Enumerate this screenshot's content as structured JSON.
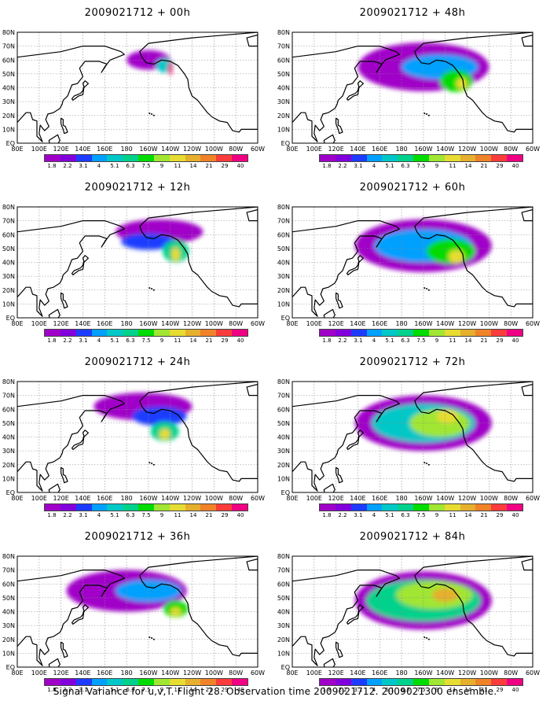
{
  "caption": "Signal Variance for u,v,T. Flight 28. Observation time 2009021712. 2009021300 ensemble.",
  "colorbar": {
    "labels": [
      "1.8",
      "2.2",
      "3.1",
      "4",
      "5.1",
      "6.3",
      "7.5",
      "9",
      "11",
      "14",
      "21",
      "29",
      "40"
    ],
    "colors": [
      "#a000c8",
      "#8200dc",
      "#1e3cff",
      "#00a0ff",
      "#00c8c8",
      "#00d28c",
      "#00dc00",
      "#a0e632",
      "#e6dc32",
      "#e6af2d",
      "#f08228",
      "#fa3c3c",
      "#f00082"
    ]
  },
  "axes": {
    "x_ticks": [
      "80E",
      "100E",
      "120E",
      "140E",
      "160E",
      "180",
      "160W",
      "140W",
      "120W",
      "100W",
      "80W",
      "60W"
    ],
    "y_ticks": [
      "80N",
      "70N",
      "60N",
      "50N",
      "40N",
      "30N",
      "20N",
      "10N",
      "EQ"
    ]
  },
  "chart_data": [
    {
      "type": "heatmap",
      "title": "2009021712 + 00h",
      "lead_hours": 0,
      "x_range": [
        "80E",
        "60W"
      ],
      "y_range": [
        "EQ",
        "80N"
      ],
      "signal_regions": [
        {
          "center": [
            200,
            60
          ],
          "extent": [
            40,
            14
          ],
          "level": "1.8"
        },
        {
          "center": [
            215,
            56
          ],
          "extent": [
            16,
            10
          ],
          "level": "5.1"
        },
        {
          "center": [
            220,
            54
          ],
          "extent": [
            4,
            10
          ],
          "level": "40"
        }
      ]
    },
    {
      "type": "heatmap",
      "title": "2009021712 + 12h",
      "lead_hours": 12,
      "x_range": [
        "80E",
        "60W"
      ],
      "y_range": [
        "EQ",
        "80N"
      ],
      "signal_regions": [
        {
          "center": [
            210,
            62
          ],
          "extent": [
            80,
            18
          ],
          "level": "1.8"
        },
        {
          "center": [
            200,
            55
          ],
          "extent": [
            50,
            12
          ],
          "level": "3.1"
        },
        {
          "center": [
            225,
            48
          ],
          "extent": [
            24,
            16
          ],
          "level": "6.3"
        },
        {
          "center": [
            225,
            46
          ],
          "extent": [
            8,
            10
          ],
          "level": "11"
        }
      ]
    },
    {
      "type": "heatmap",
      "title": "2009021712 + 24h",
      "lead_hours": 24,
      "x_range": [
        "80E",
        "60W"
      ],
      "y_range": [
        "EQ",
        "80N"
      ],
      "signal_regions": [
        {
          "center": [
            195,
            62
          ],
          "extent": [
            90,
            20
          ],
          "level": "1.8"
        },
        {
          "center": [
            210,
            55
          ],
          "extent": [
            50,
            14
          ],
          "level": "3.1"
        },
        {
          "center": [
            215,
            44
          ],
          "extent": [
            26,
            14
          ],
          "level": "6.3"
        },
        {
          "center": [
            215,
            42
          ],
          "extent": [
            10,
            8
          ],
          "level": "11"
        }
      ]
    },
    {
      "type": "heatmap",
      "title": "2009021712 + 36h",
      "lead_hours": 36,
      "x_range": [
        "80E",
        "60W"
      ],
      "y_range": [
        "EQ",
        "80N"
      ],
      "signal_regions": [
        {
          "center": [
            180,
            55
          ],
          "extent": [
            110,
            30
          ],
          "level": "1.8"
        },
        {
          "center": [
            200,
            55
          ],
          "extent": [
            60,
            16
          ],
          "level": "4"
        },
        {
          "center": [
            225,
            42
          ],
          "extent": [
            22,
            12
          ],
          "level": "7.5"
        },
        {
          "center": [
            225,
            40
          ],
          "extent": [
            10,
            6
          ],
          "level": "11"
        }
      ]
    },
    {
      "type": "heatmap",
      "title": "2009021712 + 48h",
      "lead_hours": 48,
      "x_range": [
        "80E",
        "60W"
      ],
      "y_range": [
        "EQ",
        "80N"
      ],
      "signal_regions": [
        {
          "center": [
            200,
            55
          ],
          "extent": [
            120,
            35
          ],
          "level": "1.8"
        },
        {
          "center": [
            215,
            55
          ],
          "extent": [
            70,
            18
          ],
          "level": "4"
        },
        {
          "center": [
            230,
            45
          ],
          "extent": [
            30,
            16
          ],
          "level": "7.5"
        },
        {
          "center": [
            235,
            43
          ],
          "extent": [
            10,
            8
          ],
          "level": "11"
        }
      ]
    },
    {
      "type": "heatmap",
      "title": "2009021712 + 60h",
      "lead_hours": 60,
      "x_range": [
        "80E",
        "60W"
      ],
      "y_range": [
        "EQ",
        "80N"
      ],
      "signal_regions": [
        {
          "center": [
            200,
            52
          ],
          "extent": [
            125,
            38
          ],
          "level": "1.8"
        },
        {
          "center": [
            200,
            52
          ],
          "extent": [
            90,
            24
          ],
          "level": "4"
        },
        {
          "center": [
            225,
            48
          ],
          "extent": [
            45,
            18
          ],
          "level": "7.5"
        },
        {
          "center": [
            230,
            44
          ],
          "extent": [
            14,
            10
          ],
          "level": "11"
        }
      ]
    },
    {
      "type": "heatmap",
      "title": "2009021712 + 72h",
      "lead_hours": 72,
      "x_range": [
        "80E",
        "60W"
      ],
      "y_range": [
        "EQ",
        "80N"
      ],
      "signal_regions": [
        {
          "center": [
            200,
            50
          ],
          "extent": [
            125,
            40
          ],
          "level": "1.8"
        },
        {
          "center": [
            200,
            50
          ],
          "extent": [
            95,
            28
          ],
          "level": "5.1"
        },
        {
          "center": [
            215,
            50
          ],
          "extent": [
            55,
            20
          ],
          "level": "9"
        },
        {
          "center": [
            222,
            55
          ],
          "extent": [
            20,
            10
          ],
          "level": "11"
        }
      ]
    },
    {
      "type": "heatmap",
      "title": "2009021712 + 84h",
      "lead_hours": 84,
      "x_range": [
        "80E",
        "60W"
      ],
      "y_range": [
        "EQ",
        "80N"
      ],
      "signal_regions": [
        {
          "center": [
            200,
            48
          ],
          "extent": [
            125,
            42
          ],
          "level": "1.8"
        },
        {
          "center": [
            200,
            48
          ],
          "extent": [
            105,
            30
          ],
          "level": "6.3"
        },
        {
          "center": [
            210,
            52
          ],
          "extent": [
            70,
            20
          ],
          "level": "9"
        },
        {
          "center": [
            220,
            52
          ],
          "extent": [
            24,
            10
          ],
          "level": "14"
        }
      ]
    }
  ]
}
